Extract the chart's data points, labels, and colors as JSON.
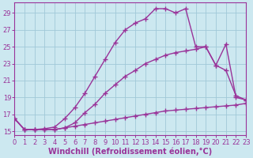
{
  "xlabel": "Windchill (Refroidissement éolien,°C)",
  "bg_color": "#cce8f0",
  "grid_color": "#a0c8d8",
  "line_color": "#993399",
  "x_ticks": [
    0,
    1,
    2,
    3,
    4,
    5,
    6,
    7,
    8,
    9,
    10,
    11,
    12,
    13,
    14,
    15,
    16,
    17,
    18,
    19,
    20,
    21,
    22,
    23
  ],
  "xlim": [
    0,
    23
  ],
  "ylim": [
    14.5,
    30.2
  ],
  "y_ticks": [
    15,
    17,
    19,
    21,
    23,
    25,
    27,
    29
  ],
  "series": [
    {
      "x": [
        0,
        1,
        2,
        3,
        4,
        5,
        6,
        7,
        8,
        9,
        10,
        11,
        12,
        13,
        14,
        15,
        16,
        17,
        18,
        19,
        20,
        21,
        22,
        23
      ],
      "y": [
        16.5,
        15.2,
        15.2,
        15.2,
        15.2,
        15.4,
        15.6,
        15.8,
        16.0,
        16.2,
        16.4,
        16.6,
        16.8,
        17.0,
        17.2,
        17.4,
        17.5,
        17.6,
        17.7,
        17.8,
        17.9,
        18.0,
        18.1,
        18.3
      ]
    },
    {
      "x": [
        0,
        1,
        2,
        3,
        4,
        5,
        6,
        7,
        8,
        9,
        10,
        11,
        12,
        13,
        14,
        15,
        16,
        17,
        18,
        19,
        20,
        21,
        22,
        23
      ],
      "y": [
        16.5,
        15.2,
        15.2,
        15.2,
        15.2,
        15.4,
        16.0,
        17.2,
        18.2,
        19.5,
        20.5,
        21.5,
        22.2,
        23.0,
        23.5,
        24.0,
        24.3,
        24.5,
        24.7,
        25.0,
        22.8,
        22.2,
        19.2,
        18.7
      ]
    },
    {
      "x": [
        0,
        1,
        2,
        3,
        4,
        5,
        6,
        7,
        8,
        9,
        10,
        11,
        12,
        13,
        14,
        15,
        16,
        17,
        18,
        19,
        20,
        21,
        22,
        23
      ],
      "y": [
        16.5,
        15.2,
        15.2,
        15.3,
        15.5,
        16.5,
        17.8,
        19.5,
        21.5,
        23.5,
        25.5,
        27.0,
        27.8,
        28.3,
        29.5,
        29.5,
        29.0,
        29.5,
        25.0,
        25.0,
        22.8,
        25.3,
        19.0,
        18.7
      ]
    }
  ],
  "marker": "+",
  "marker_size": 4.0,
  "linewidth": 1.0,
  "tick_fontsize": 6.0,
  "label_fontsize": 7.0,
  "tick_color": "#993399",
  "spine_color": "#993399"
}
